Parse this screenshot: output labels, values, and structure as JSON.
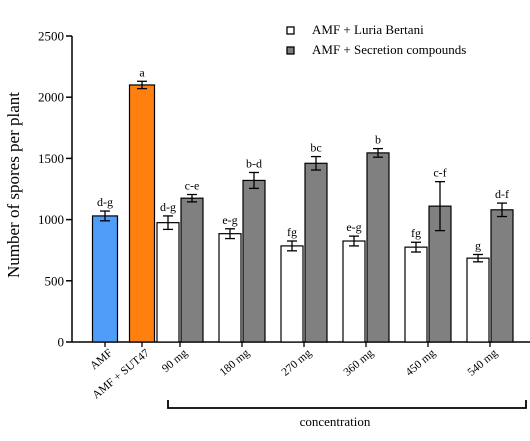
{
  "chart_data": {
    "type": "bar",
    "ylabel": "Number of spores per plant",
    "xlabel": "concentration",
    "ylim": [
      0,
      2500
    ],
    "yticks": [
      0,
      500,
      1000,
      1500,
      2000,
      2500
    ],
    "legend_position": "top-right",
    "legend": [
      {
        "label": "AMF + Luria Bertani",
        "color": "#ffffff"
      },
      {
        "label": "AMF + Secretion compounds",
        "color": "#808080"
      }
    ],
    "controls": [
      {
        "category": "AMF",
        "value": 1030,
        "error": 40,
        "letter": "d-g",
        "color": "#4f9cf9"
      },
      {
        "category": "AMF + SUT47",
        "value": 2100,
        "error": 30,
        "letter": "a",
        "color": "#ff7f0f"
      }
    ],
    "categories": [
      "90 mg",
      "180 mg",
      "270 mg",
      "360 mg",
      "450 mg",
      "540 mg"
    ],
    "series": [
      {
        "name": "AMF + Luria Bertani",
        "color": "#ffffff",
        "values": [
          975,
          885,
          785,
          825,
          775,
          685
        ],
        "errors": [
          55,
          40,
          40,
          40,
          40,
          30
        ],
        "letters": [
          "d-g",
          "e-g",
          "fg",
          "e-g",
          "fg",
          "g"
        ]
      },
      {
        "name": "AMF + Secretion compounds",
        "color": "#808080",
        "values": [
          1175,
          1320,
          1460,
          1545,
          1110,
          1080
        ],
        "errors": [
          30,
          65,
          55,
          35,
          200,
          55
        ],
        "letters": [
          "c-e",
          "b-d",
          "bc",
          "b",
          "c-f",
          "d-f"
        ]
      }
    ]
  }
}
